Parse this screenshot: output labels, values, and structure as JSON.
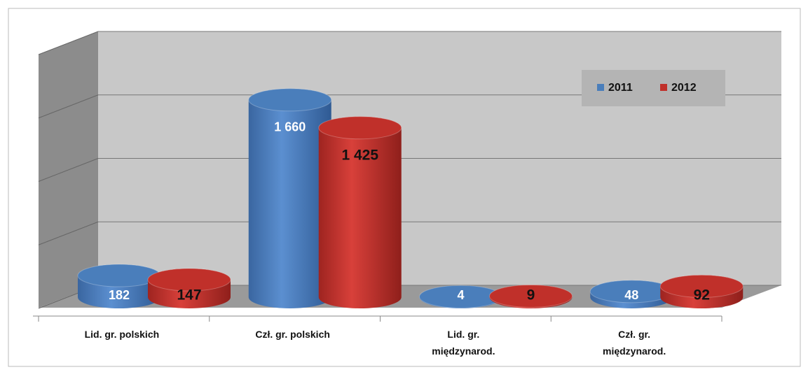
{
  "chart_data": {
    "type": "bar",
    "categories": [
      "Lid. gr. polskich",
      "Czł. gr. polskich",
      "Lid. gr. międzynarod.",
      "Czł. gr. międzynarod."
    ],
    "series": [
      {
        "name": "2011",
        "color": "#4a7ebb",
        "values": [
          182,
          1660,
          4,
          48
        ],
        "value_labels": [
          "182",
          "1 660",
          "4",
          "48"
        ]
      },
      {
        "name": "2012",
        "color": "#c0302a",
        "values": [
          147,
          1425,
          9,
          92
        ],
        "value_labels": [
          "147",
          "1 425",
          "9",
          "92"
        ]
      }
    ],
    "ylim": [
      0,
      2000
    ],
    "yticks": [
      0,
      500,
      1000,
      1500,
      2000
    ],
    "grid": true,
    "legend": "upper right"
  }
}
